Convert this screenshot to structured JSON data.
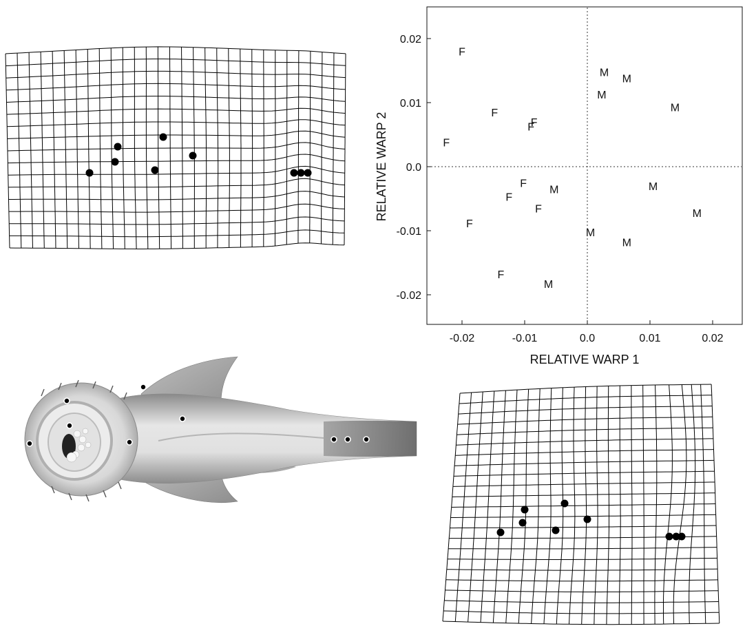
{
  "chart_data": {
    "type": "scatter",
    "title": "",
    "xlabel": "RELATIVE WARP 1",
    "ylabel": "RELATIVE WARP 2",
    "xlim": [
      -0.025,
      0.025
    ],
    "ylim": [
      -0.025,
      0.025
    ],
    "xticks": [
      "-0.02",
      "-0.01",
      "0.0",
      "0.01",
      "0.02"
    ],
    "xtick_values": [
      -0.02,
      -0.01,
      0.0,
      0.01,
      0.02
    ],
    "yticks": [
      "0.02",
      "0.01",
      "0.0",
      "-0.01",
      "-0.02"
    ],
    "ytick_values": [
      0.02,
      0.01,
      0.0,
      -0.01,
      -0.02
    ],
    "grid": false,
    "reference_lines": "dotted lines at x=0 and y=0",
    "marker_color": "#111111",
    "series": [
      {
        "name": "F",
        "points": [
          {
            "x": -0.02,
            "y": 0.018
          },
          {
            "x": -0.0148,
            "y": 0.0085
          },
          {
            "x": -0.0085,
            "y": 0.007
          },
          {
            "x": -0.009,
            "y": 0.0063
          },
          {
            "x": -0.0225,
            "y": 0.0038
          },
          {
            "x": -0.0102,
            "y": -0.0025
          },
          {
            "x": -0.0125,
            "y": -0.0047
          },
          {
            "x": -0.0078,
            "y": -0.0065
          },
          {
            "x": -0.0188,
            "y": -0.0088
          },
          {
            "x": -0.0138,
            "y": -0.0168
          }
        ]
      },
      {
        "name": "M",
        "points": [
          {
            "x": 0.0027,
            "y": 0.0148
          },
          {
            "x": 0.0063,
            "y": 0.0138
          },
          {
            "x": 0.0023,
            "y": 0.0113
          },
          {
            "x": 0.014,
            "y": 0.0093
          },
          {
            "x": -0.0053,
            "y": -0.0035
          },
          {
            "x": 0.0105,
            "y": -0.003
          },
          {
            "x": 0.0175,
            "y": -0.0072
          },
          {
            "x": 0.0005,
            "y": -0.0102
          },
          {
            "x": 0.0063,
            "y": -0.0118
          },
          {
            "x": -0.0062,
            "y": -0.0183
          }
        ]
      }
    ]
  },
  "illustrations": {
    "photo": "fish-ventral-view",
    "grids": [
      "deformation-grid-negative",
      "deformation-grid-positive"
    ],
    "landmark_color": "#000000"
  }
}
